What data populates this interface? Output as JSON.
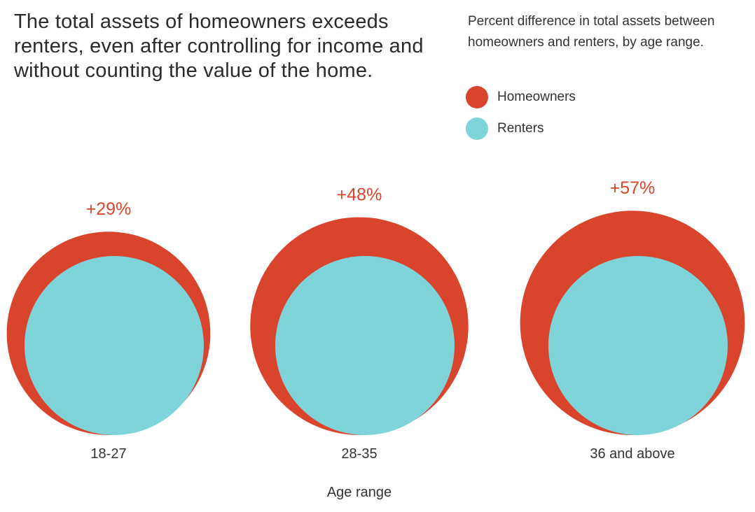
{
  "colors": {
    "homeowners": "#d9452c",
    "renters": "#7fd4da",
    "value_label": "#d9452c",
    "text": "#2b2b2b"
  },
  "chart_data": {
    "type": "bubble",
    "title": "The total assets of homeowners exceeds renters, even after controlling for income and without counting the value of the home.",
    "subtitle": "Percent difference in total assets between homeowners and renters, by age range.",
    "xlabel": "Age range",
    "legend": [
      "Homeowners",
      "Renters"
    ],
    "legend_position": "top-right",
    "categories": [
      "18-27",
      "28-35",
      "36 and above"
    ],
    "series": [
      {
        "name": "Renters",
        "values": [
          1,
          1,
          1
        ]
      },
      {
        "name": "Homeowners",
        "values": [
          1.29,
          1.48,
          1.57
        ]
      }
    ],
    "value_labels": [
      "+29%",
      "+48%",
      "+57%"
    ],
    "differences_percent": [
      29,
      48,
      57
    ]
  }
}
